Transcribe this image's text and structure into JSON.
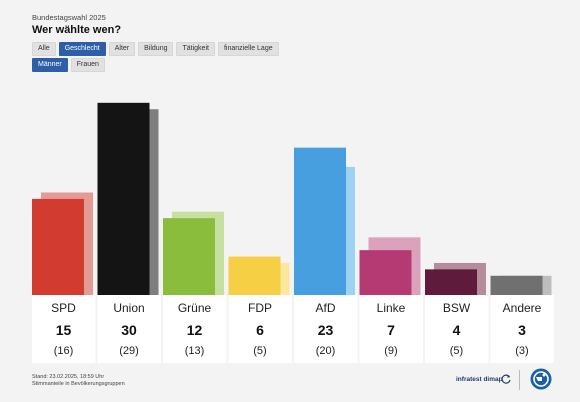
{
  "header": {
    "kicker": "Bundestagswahl 2025",
    "title": "Wer wählte wen?"
  },
  "filters": {
    "main": [
      {
        "label": "Alle",
        "active": false
      },
      {
        "label": "Geschlecht",
        "active": true
      },
      {
        "label": "Alter",
        "active": false
      },
      {
        "label": "Bildung",
        "active": false
      },
      {
        "label": "Tätigkeit",
        "active": false
      },
      {
        "label": "finanzielle Lage",
        "active": false
      }
    ],
    "sub": [
      {
        "label": "Männer",
        "active": true
      },
      {
        "label": "Frauen",
        "active": false
      }
    ]
  },
  "chart_data": {
    "type": "bar",
    "categories": [
      "SPD",
      "Union",
      "Grüne",
      "FDP",
      "AfD",
      "Linke",
      "BSW",
      "Andere"
    ],
    "series": [
      {
        "values": [
          15,
          30,
          12,
          6,
          23,
          7,
          4,
          3
        ]
      },
      {
        "values": [
          16,
          29,
          13,
          5,
          20,
          9,
          5,
          3
        ]
      }
    ],
    "value_labels": [
      "15",
      "30",
      "12",
      "6",
      "23",
      "7",
      "4",
      "3"
    ],
    "previous_labels": [
      "(16)",
      "(29)",
      "(13)",
      "(5)",
      "(20)",
      "(9)",
      "(5)",
      "(3)"
    ],
    "colors": [
      "#d23b2f",
      "#141414",
      "#8bbd3c",
      "#f7cf45",
      "#479fe0",
      "#b53a73",
      "#5e1b3b",
      "#707070"
    ],
    "shadow_colors": [
      "#e59b95",
      "#7e7e7e",
      "#c6e0a0",
      "#fbe7a0",
      "#9cd2f2",
      "#dba2bc",
      "#b48c9c",
      "#bdbdbd"
    ],
    "ylim": [
      0,
      32
    ]
  },
  "footer": {
    "line1": "Stand: 23.02.2025, 18:59 Uhr",
    "line2": "Stimmanteile in Bevölkerungsgruppen",
    "brand": "infratest dimap"
  }
}
